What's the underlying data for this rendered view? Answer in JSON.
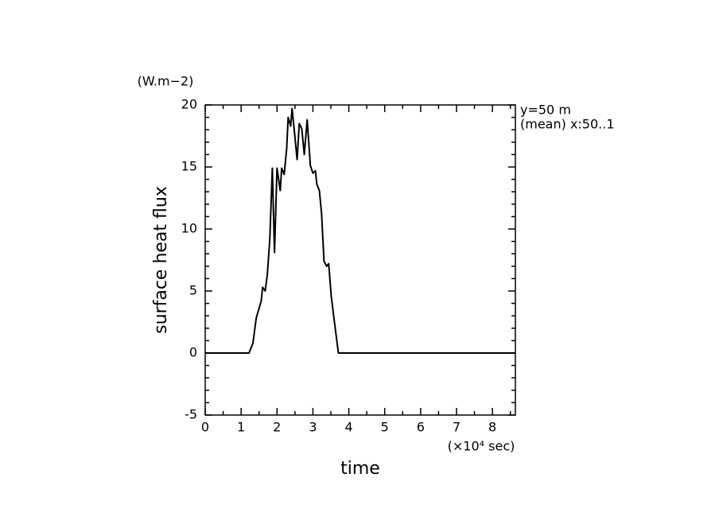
{
  "chart_data": {
    "type": "line",
    "y_unit": "(W.m−2)",
    "y_label": "surface heat flux",
    "x_label": "time",
    "x_unit": "(×10⁴ sec)",
    "annotations": [
      "y=50 m",
      "(mean) x:50..1"
    ],
    "x": [
      0,
      1.22,
      1.33,
      1.42,
      1.49,
      1.56,
      1.6,
      1.67,
      1.73,
      1.8,
      1.87,
      1.93,
      2.0,
      2.09,
      2.13,
      2.2,
      2.27,
      2.31,
      2.38,
      2.42,
      2.49,
      2.56,
      2.62,
      2.69,
      2.76,
      2.84,
      2.93,
      3.0,
      3.07,
      3.11,
      3.18,
      3.24,
      3.31,
      3.38,
      3.44,
      3.51,
      3.6,
      3.71,
      8.64
    ],
    "series": [
      {
        "color": "#000000",
        "values": [
          0,
          0,
          0.8,
          2.8,
          3.5,
          4.2,
          5.3,
          5.0,
          6.3,
          9.2,
          14.9,
          8.1,
          14.9,
          13.1,
          14.9,
          14.4,
          16.5,
          19.0,
          18.3,
          19.7,
          17.7,
          15.6,
          18.5,
          18.1,
          16.0,
          18.8,
          15.1,
          14.5,
          14.7,
          13.6,
          13.1,
          11.3,
          7.4,
          7.0,
          7.2,
          4.6,
          2.5,
          0,
          0
        ]
      }
    ],
    "xlim": [
      0,
      8.64
    ],
    "ylim": [
      -5,
      20
    ],
    "xticks": [
      0,
      1,
      2,
      3,
      4,
      5,
      6,
      7,
      8
    ],
    "yticks": [
      -5,
      0,
      5,
      10,
      15,
      20
    ],
    "xminorticks": [
      0.5,
      1.5,
      2.5,
      3.5,
      4.5,
      5.5,
      6.5,
      7.5,
      8.5
    ],
    "yminorticks": [
      -4,
      -3,
      -2,
      -1,
      1,
      2,
      3,
      4,
      6,
      7,
      8,
      9,
      11,
      12,
      13,
      14,
      16,
      17,
      18,
      19
    ]
  }
}
